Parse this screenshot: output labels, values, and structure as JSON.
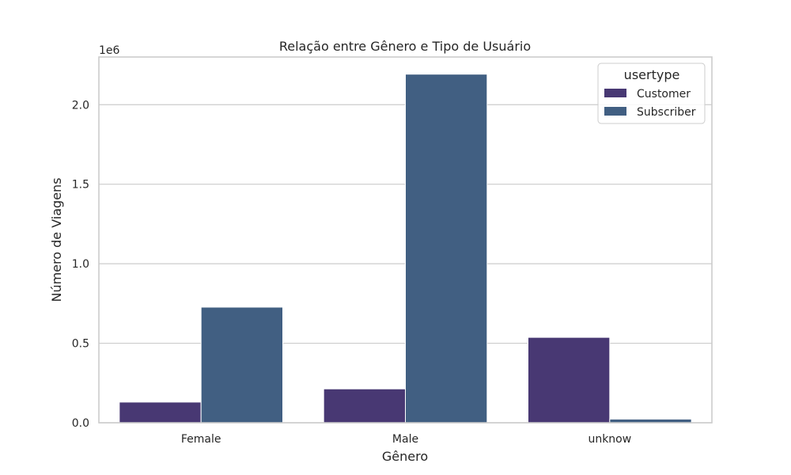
{
  "chart_data": {
    "type": "bar",
    "title": "Relação entre Gênero e Tipo de Usuário",
    "xlabel": "Gênero",
    "ylabel": "Número de Viagens",
    "y_scale_label": "1e6",
    "ylim": [
      0,
      2300000
    ],
    "y_ticks": [
      0,
      500000,
      1000000,
      1500000,
      2000000
    ],
    "y_tick_labels": [
      "0.0",
      "0.5",
      "1.0",
      "1.5",
      "2.0"
    ],
    "grid": true,
    "categories": [
      "Female",
      "Male",
      "unknow"
    ],
    "legend": {
      "title": "usertype",
      "position": "top-right"
    },
    "series": [
      {
        "name": "Customer",
        "color": "#483873",
        "values": [
          130000,
          213000,
          537000
        ]
      },
      {
        "name": "Subscriber",
        "color": "#415f82",
        "values": [
          727000,
          2192000,
          23000
        ]
      }
    ]
  }
}
